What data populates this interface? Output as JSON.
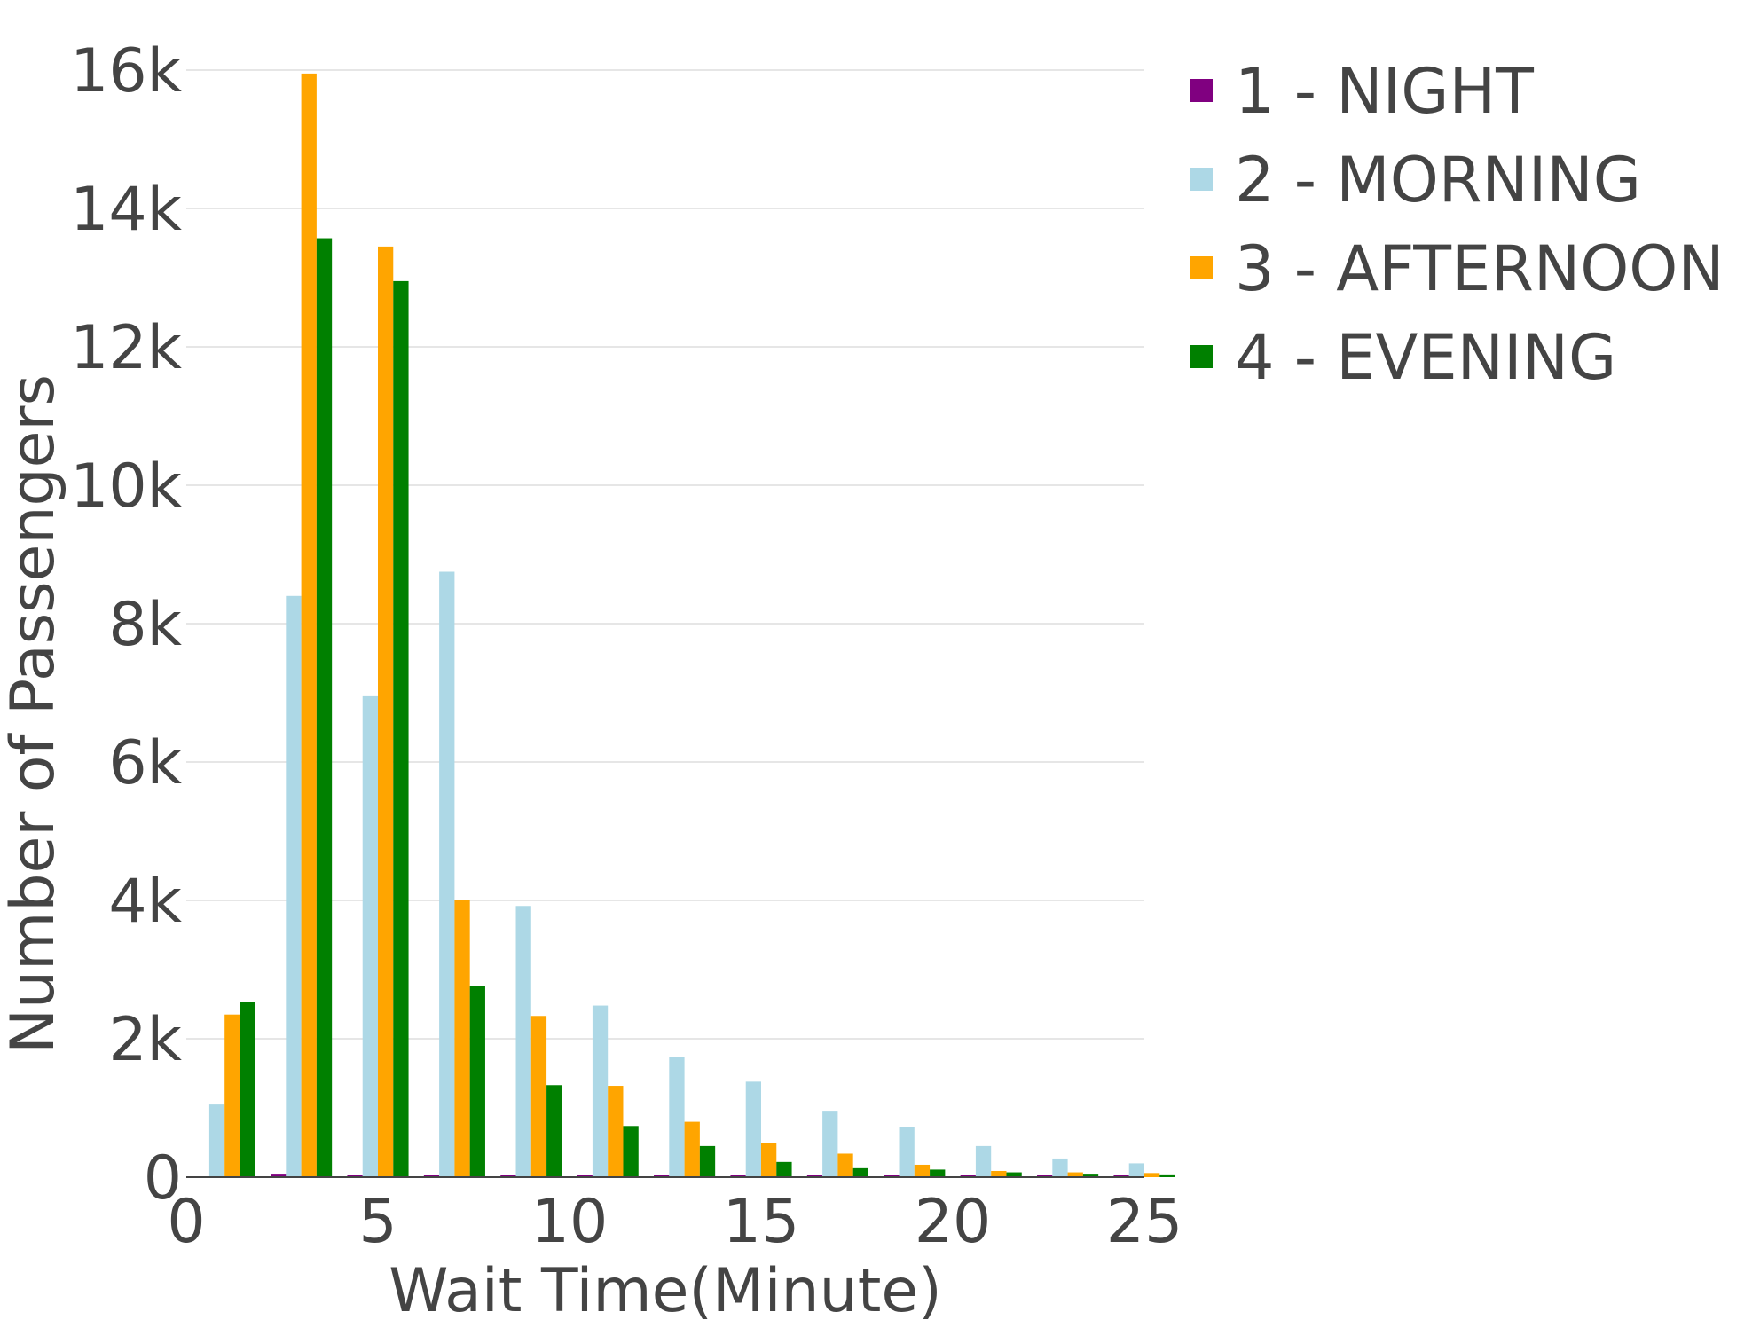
{
  "chart_data": {
    "type": "bar",
    "xlabel": "Wait Time(Minute)",
    "ylabel": "Number of Passengers",
    "xlim": [
      0,
      25
    ],
    "ylim": [
      0,
      16500
    ],
    "x_ticks": [
      0,
      5,
      10,
      15,
      20,
      25
    ],
    "x_tick_labels": [
      "0",
      "5",
      "10",
      "15",
      "20",
      "25"
    ],
    "y_ticks": [
      0,
      2000,
      4000,
      6000,
      8000,
      10000,
      12000,
      14000,
      16000
    ],
    "y_tick_labels": [
      "0",
      "2k",
      "4k",
      "6k",
      "8k",
      "10k",
      "12k",
      "14k",
      "16k"
    ],
    "grid": true,
    "legend_position": "top-right",
    "bin_starts": [
      0,
      2,
      4,
      6,
      8,
      10,
      12,
      14,
      16,
      18,
      20,
      22,
      24
    ],
    "bin_width": 2,
    "series": [
      {
        "name": "1 - NIGHT",
        "color": "#800080",
        "values": [
          0,
          50,
          30,
          30,
          30,
          25,
          20,
          20,
          15,
          10,
          10,
          10,
          5
        ]
      },
      {
        "name": "2 - MORNING",
        "color": "#add8e6",
        "values": [
          1050,
          8400,
          6950,
          8750,
          3920,
          2480,
          1740,
          1380,
          960,
          720,
          450,
          270,
          200
        ]
      },
      {
        "name": "3 - AFTERNOON",
        "color": "#ffa500",
        "values": [
          2350,
          15950,
          13450,
          4000,
          2330,
          1320,
          800,
          500,
          340,
          180,
          90,
          70,
          60
        ]
      },
      {
        "name": "4 - EVENING",
        "color": "#008000",
        "values": [
          2530,
          13570,
          12950,
          2760,
          1330,
          740,
          450,
          220,
          130,
          110,
          70,
          50,
          40
        ]
      }
    ]
  }
}
